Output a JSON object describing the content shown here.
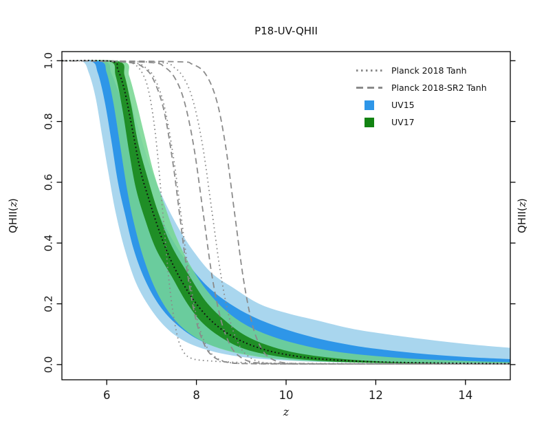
{
  "chart_data": {
    "type": "line",
    "title": "P18-UV-QHII",
    "xlabel": "z",
    "ylabel_parts": {
      "prefix": "QHII(",
      "variable": "z",
      "suffix": ")"
    },
    "xlim": [
      5,
      15
    ],
    "ylim": [
      -0.05,
      1.03
    ],
    "grid": false,
    "axis_color": "#000000",
    "xticks": [
      {
        "value": 6,
        "label": "6"
      },
      {
        "value": 8,
        "label": "8"
      },
      {
        "value": 10,
        "label": "10"
      },
      {
        "value": 12,
        "label": "12"
      },
      {
        "value": 14,
        "label": "14"
      }
    ],
    "yticks": [
      {
        "value": 0.0,
        "label": "0.0"
      },
      {
        "value": 0.2,
        "label": "0.2"
      },
      {
        "value": 0.4,
        "label": "0.4"
      },
      {
        "value": 0.6,
        "label": "0.6"
      },
      {
        "value": 0.8,
        "label": "0.8"
      },
      {
        "value": 1.0,
        "label": "1.0"
      }
    ],
    "legend": {
      "position": "upper-right",
      "frame": false,
      "items": [
        {
          "name": "planck-2018-tanh",
          "label": "Planck 2018 Tanh",
          "marker": "dotted",
          "color": "#8a8a8a"
        },
        {
          "name": "planck-2018-sr2-tanh",
          "label": "Planck 2018-SR2 Tanh",
          "marker": "dashed",
          "color": "#8a8a8a"
        },
        {
          "name": "uv15",
          "label": "UV15",
          "marker": "patch",
          "color": "#2e96e8"
        },
        {
          "name": "uv17",
          "label": "UV17",
          "marker": "patch",
          "color": "#128312"
        }
      ]
    },
    "bands": [
      {
        "name": "uv15-95-band",
        "series": "UV15 95% credible region",
        "color": "#a9d6ee",
        "opacity": 1,
        "upper": [
          [
            5,
            1
          ],
          [
            6.15,
            0.998
          ],
          [
            6.3,
            0.96
          ],
          [
            6.5,
            0.885
          ],
          [
            6.7,
            0.78
          ],
          [
            6.95,
            0.66
          ],
          [
            7.25,
            0.55
          ],
          [
            7.6,
            0.45
          ],
          [
            7.95,
            0.37
          ],
          [
            8.35,
            0.3
          ],
          [
            8.85,
            0.25
          ],
          [
            9.4,
            0.2
          ],
          [
            10,
            0.17
          ],
          [
            10.7,
            0.145
          ],
          [
            11.4,
            0.12
          ],
          [
            12,
            0.105
          ],
          [
            13,
            0.085
          ],
          [
            14,
            0.068
          ],
          [
            15,
            0.055
          ]
        ],
        "lower": [
          [
            5,
            1
          ],
          [
            5.45,
            0.998
          ],
          [
            5.6,
            0.96
          ],
          [
            5.75,
            0.88
          ],
          [
            5.9,
            0.75
          ],
          [
            6.05,
            0.62
          ],
          [
            6.2,
            0.5
          ],
          [
            6.4,
            0.38
          ],
          [
            6.65,
            0.27
          ],
          [
            6.95,
            0.19
          ],
          [
            7.3,
            0.125
          ],
          [
            7.7,
            0.08
          ],
          [
            8.2,
            0.05
          ],
          [
            8.8,
            0.03
          ],
          [
            9.5,
            0.018
          ],
          [
            10.5,
            0.01
          ],
          [
            12,
            0.005
          ],
          [
            13.5,
            0.003
          ],
          [
            15,
            0.002
          ]
        ]
      },
      {
        "name": "uv15-68-band",
        "series": "UV15 68% credible region",
        "color": "#2e96e8",
        "opacity": 1,
        "upper": [
          [
            5,
            1
          ],
          [
            5.95,
            0.998
          ],
          [
            6.1,
            0.96
          ],
          [
            6.3,
            0.88
          ],
          [
            6.5,
            0.77
          ],
          [
            6.75,
            0.65
          ],
          [
            7.0,
            0.55
          ],
          [
            7.25,
            0.47
          ],
          [
            7.55,
            0.39
          ],
          [
            7.9,
            0.315
          ],
          [
            8.3,
            0.25
          ],
          [
            8.8,
            0.195
          ],
          [
            9.3,
            0.155
          ],
          [
            9.9,
            0.12
          ],
          [
            10.6,
            0.09
          ],
          [
            11.3,
            0.068
          ],
          [
            12,
            0.052
          ],
          [
            13,
            0.036
          ],
          [
            14,
            0.025
          ],
          [
            15,
            0.018
          ]
        ],
        "lower": [
          [
            5,
            1
          ],
          [
            5.65,
            0.998
          ],
          [
            5.8,
            0.96
          ],
          [
            5.95,
            0.87
          ],
          [
            6.1,
            0.74
          ],
          [
            6.25,
            0.6
          ],
          [
            6.4,
            0.5
          ],
          [
            6.6,
            0.38
          ],
          [
            6.85,
            0.28
          ],
          [
            7.15,
            0.2
          ],
          [
            7.5,
            0.14
          ],
          [
            7.95,
            0.09
          ],
          [
            8.5,
            0.055
          ],
          [
            9.2,
            0.032
          ],
          [
            10,
            0.018
          ],
          [
            11,
            0.01
          ],
          [
            12.5,
            0.005
          ],
          [
            14,
            0.003
          ],
          [
            15,
            0.002
          ]
        ]
      },
      {
        "name": "uv17-95-band",
        "series": "UV17 95% credible region",
        "color": "#74d68f",
        "opacity": 0.85,
        "upper": [
          [
            5,
            1
          ],
          [
            6.35,
            0.998
          ],
          [
            6.5,
            0.95
          ],
          [
            6.65,
            0.87
          ],
          [
            6.85,
            0.75
          ],
          [
            7.05,
            0.63
          ],
          [
            7.3,
            0.52
          ],
          [
            7.55,
            0.42
          ],
          [
            7.85,
            0.33
          ],
          [
            8.2,
            0.25
          ],
          [
            8.6,
            0.185
          ],
          [
            9.05,
            0.135
          ],
          [
            9.55,
            0.1
          ],
          [
            10.2,
            0.07
          ],
          [
            11,
            0.045
          ],
          [
            12,
            0.028
          ],
          [
            13,
            0.018
          ],
          [
            14,
            0.012
          ],
          [
            15,
            0.008
          ]
        ],
        "lower": [
          [
            5,
            1
          ],
          [
            5.85,
            0.998
          ],
          [
            6.0,
            0.96
          ],
          [
            6.15,
            0.86
          ],
          [
            6.3,
            0.72
          ],
          [
            6.45,
            0.58
          ],
          [
            6.6,
            0.47
          ],
          [
            6.8,
            0.36
          ],
          [
            7.05,
            0.26
          ],
          [
            7.35,
            0.18
          ],
          [
            7.7,
            0.12
          ],
          [
            8.15,
            0.075
          ],
          [
            8.7,
            0.045
          ],
          [
            9.4,
            0.025
          ],
          [
            10.2,
            0.014
          ],
          [
            11.2,
            0.008
          ],
          [
            12.5,
            0.004
          ],
          [
            14,
            0.003
          ],
          [
            15,
            0.002
          ]
        ]
      },
      {
        "name": "uv17-68-band",
        "series": "UV17 68% credible region",
        "color": "#128312",
        "opacity": 0.85,
        "upper": [
          [
            5,
            1
          ],
          [
            6.25,
            0.998
          ],
          [
            6.4,
            0.95
          ],
          [
            6.55,
            0.85
          ],
          [
            6.7,
            0.73
          ],
          [
            6.9,
            0.62
          ],
          [
            7.15,
            0.5
          ],
          [
            7.45,
            0.39
          ],
          [
            7.85,
            0.29
          ],
          [
            8.2,
            0.21
          ],
          [
            8.6,
            0.15
          ],
          [
            9.1,
            0.095
          ],
          [
            9.7,
            0.058
          ],
          [
            10.4,
            0.034
          ],
          [
            11.3,
            0.018
          ],
          [
            12.3,
            0.009
          ],
          [
            13.5,
            0.005
          ],
          [
            15,
            0.003
          ]
        ],
        "lower": [
          [
            5,
            1
          ],
          [
            6.05,
            0.998
          ],
          [
            6.2,
            0.95
          ],
          [
            6.35,
            0.84
          ],
          [
            6.5,
            0.7
          ],
          [
            6.65,
            0.58
          ],
          [
            6.85,
            0.48
          ],
          [
            7.1,
            0.38
          ],
          [
            7.45,
            0.29
          ],
          [
            7.8,
            0.2
          ],
          [
            8.15,
            0.135
          ],
          [
            8.6,
            0.085
          ],
          [
            9.1,
            0.05
          ],
          [
            9.8,
            0.027
          ],
          [
            10.6,
            0.014
          ],
          [
            11.6,
            0.007
          ],
          [
            13,
            0.004
          ],
          [
            15,
            0.002
          ]
        ]
      }
    ],
    "curves": [
      {
        "name": "planck2018-tanh-early",
        "series": "Planck 2018 Tanh (early)",
        "style": "dotted",
        "color": "#8a8a8a",
        "width": 1.8,
        "points": [
          [
            5,
            1
          ],
          [
            6.3,
            0.999
          ],
          [
            6.6,
            0.99
          ],
          [
            6.8,
            0.957
          ],
          [
            6.95,
            0.89
          ],
          [
            7.1,
            0.74
          ],
          [
            7.25,
            0.5
          ],
          [
            7.4,
            0.26
          ],
          [
            7.55,
            0.11
          ],
          [
            7.7,
            0.045
          ],
          [
            7.9,
            0.02
          ],
          [
            8.3,
            0.012
          ],
          [
            9,
            0.007
          ],
          [
            10,
            0.004
          ],
          [
            12,
            0.003
          ],
          [
            15,
            0.002
          ]
        ]
      },
      {
        "name": "planck2018-tanh-mid",
        "series": "Planck 2018 Tanh (mid)",
        "style": "dotted",
        "color": "#8a8a8a",
        "width": 1.8,
        "points": [
          [
            5,
            1
          ],
          [
            6.5,
            0.995
          ],
          [
            6.9,
            0.973
          ],
          [
            7.1,
            0.932
          ],
          [
            7.3,
            0.84
          ],
          [
            7.5,
            0.67
          ],
          [
            7.65,
            0.5
          ],
          [
            7.8,
            0.33
          ],
          [
            8.0,
            0.16
          ],
          [
            8.2,
            0.068
          ],
          [
            8.4,
            0.027
          ],
          [
            8.7,
            0.008
          ],
          [
            9.2,
            0.003
          ],
          [
            11,
            0.002
          ],
          [
            15,
            0.002
          ]
        ]
      },
      {
        "name": "planck2018-tanh-late",
        "series": "Planck 2018 Tanh (late)",
        "style": "dotted",
        "color": "#8a8a8a",
        "width": 1.8,
        "points": [
          [
            5,
            1
          ],
          [
            7.1,
            0.995
          ],
          [
            7.5,
            0.978
          ],
          [
            7.75,
            0.935
          ],
          [
            7.95,
            0.855
          ],
          [
            8.15,
            0.71
          ],
          [
            8.35,
            0.5
          ],
          [
            8.55,
            0.29
          ],
          [
            8.75,
            0.145
          ],
          [
            8.95,
            0.065
          ],
          [
            9.15,
            0.028
          ],
          [
            9.45,
            0.008
          ],
          [
            10,
            0.003
          ],
          [
            11,
            0.002
          ],
          [
            15,
            0.002
          ]
        ]
      },
      {
        "name": "planck2018-sr2-early",
        "series": "Planck 2018-SR2 Tanh (early)",
        "style": "dashed",
        "color": "#8a8a8a",
        "width": 1.8,
        "points": [
          [
            5,
            1
          ],
          [
            6.45,
            0.995
          ],
          [
            6.85,
            0.974
          ],
          [
            7.05,
            0.935
          ],
          [
            7.27,
            0.84
          ],
          [
            7.47,
            0.67
          ],
          [
            7.62,
            0.5
          ],
          [
            7.77,
            0.33
          ],
          [
            7.97,
            0.16
          ],
          [
            8.17,
            0.068
          ],
          [
            8.37,
            0.027
          ],
          [
            8.67,
            0.008
          ],
          [
            9.2,
            0.003
          ],
          [
            11,
            0.002
          ],
          [
            15,
            0.002
          ]
        ]
      },
      {
        "name": "planck2018-sr2-mid",
        "series": "Planck 2018-SR2 Tanh (mid)",
        "style": "dashed",
        "color": "#8a8a8a",
        "width": 1.8,
        "points": [
          [
            5,
            1
          ],
          [
            6.9,
            0.995
          ],
          [
            7.3,
            0.978
          ],
          [
            7.55,
            0.935
          ],
          [
            7.75,
            0.855
          ],
          [
            7.95,
            0.71
          ],
          [
            8.15,
            0.5
          ],
          [
            8.35,
            0.29
          ],
          [
            8.55,
            0.145
          ],
          [
            8.75,
            0.065
          ],
          [
            8.95,
            0.028
          ],
          [
            9.25,
            0.008
          ],
          [
            9.8,
            0.003
          ],
          [
            11,
            0.002
          ],
          [
            15,
            0.002
          ]
        ]
      },
      {
        "name": "planck2018-sr2-late",
        "series": "Planck 2018-SR2 Tanh (late)",
        "style": "dashed",
        "color": "#8a8a8a",
        "width": 1.8,
        "points": [
          [
            5,
            1
          ],
          [
            7.5,
            0.997
          ],
          [
            7.9,
            0.989
          ],
          [
            8.2,
            0.957
          ],
          [
            8.45,
            0.87
          ],
          [
            8.65,
            0.72
          ],
          [
            8.85,
            0.5
          ],
          [
            9.05,
            0.28
          ],
          [
            9.25,
            0.13
          ],
          [
            9.45,
            0.053
          ],
          [
            9.65,
            0.021
          ],
          [
            9.95,
            0.006
          ],
          [
            10.5,
            0.003
          ],
          [
            12,
            0.002
          ],
          [
            15,
            0.002
          ]
        ]
      },
      {
        "name": "uv17-median",
        "series": "UV17 median",
        "style": "dotted-black",
        "color": "#101010",
        "width": 2,
        "points": [
          [
            5,
            1
          ],
          [
            6.1,
            0.998
          ],
          [
            6.25,
            0.97
          ],
          [
            6.4,
            0.9
          ],
          [
            6.55,
            0.79
          ],
          [
            6.75,
            0.64
          ],
          [
            6.95,
            0.54
          ],
          [
            7.1,
            0.47
          ],
          [
            7.35,
            0.37
          ],
          [
            7.65,
            0.28
          ],
          [
            8.0,
            0.2
          ],
          [
            8.4,
            0.135
          ],
          [
            8.9,
            0.085
          ],
          [
            9.5,
            0.05
          ],
          [
            10.2,
            0.028
          ],
          [
            11,
            0.016
          ],
          [
            12,
            0.009
          ],
          [
            13.5,
            0.005
          ],
          [
            15,
            0.003
          ]
        ]
      }
    ]
  }
}
